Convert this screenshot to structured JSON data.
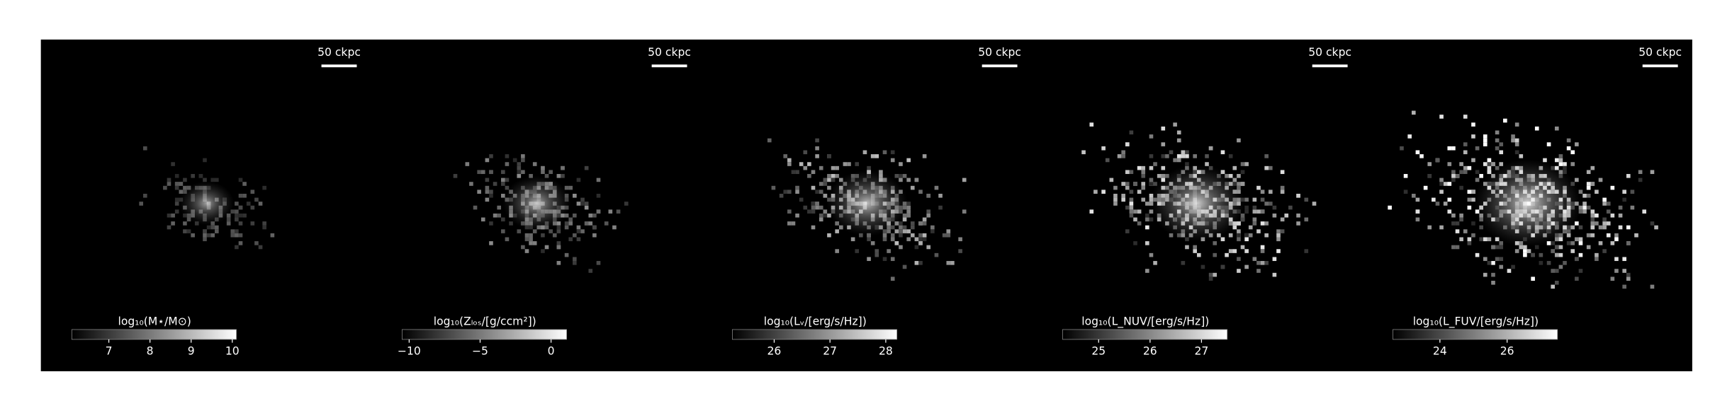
{
  "panels": [
    {
      "scale_label": "50 ckpc",
      "colorbar": {
        "label": "log₁₀(M⋆/M⊙)",
        "lim": [
          6.1,
          10.1
        ],
        "ticks": [
          7,
          8,
          9,
          10
        ]
      }
    },
    {
      "scale_label": "50 ckpc",
      "colorbar": {
        "label": "log₁₀(Zₗₒₛ/[g/ccm²])",
        "lim": [
          -10.5,
          1.1
        ],
        "ticks": [
          {
            "value": -10,
            "label": "−10"
          },
          {
            "value": -5,
            "label": "−5"
          },
          0
        ]
      }
    },
    {
      "scale_label": "50 ckpc",
      "colorbar": {
        "label": "log₁₀(Lᵥ/[erg/s/Hz])",
        "lim": [
          25.25,
          28.2
        ],
        "ticks": [
          26,
          27,
          28
        ]
      }
    },
    {
      "scale_label": "50 ckpc",
      "colorbar": {
        "label": "log₁₀(L_NUV/[erg/s/Hz])",
        "lim": [
          24.3,
          27.5
        ],
        "ticks": [
          25,
          26,
          27
        ]
      }
    },
    {
      "scale_label": "50 ckpc",
      "colorbar": {
        "label": "log₁₀(L_FUV/[erg/s/Hz])",
        "lim": [
          22.6,
          27.5
        ],
        "ticks": [
          24,
          26
        ]
      }
    }
  ]
}
